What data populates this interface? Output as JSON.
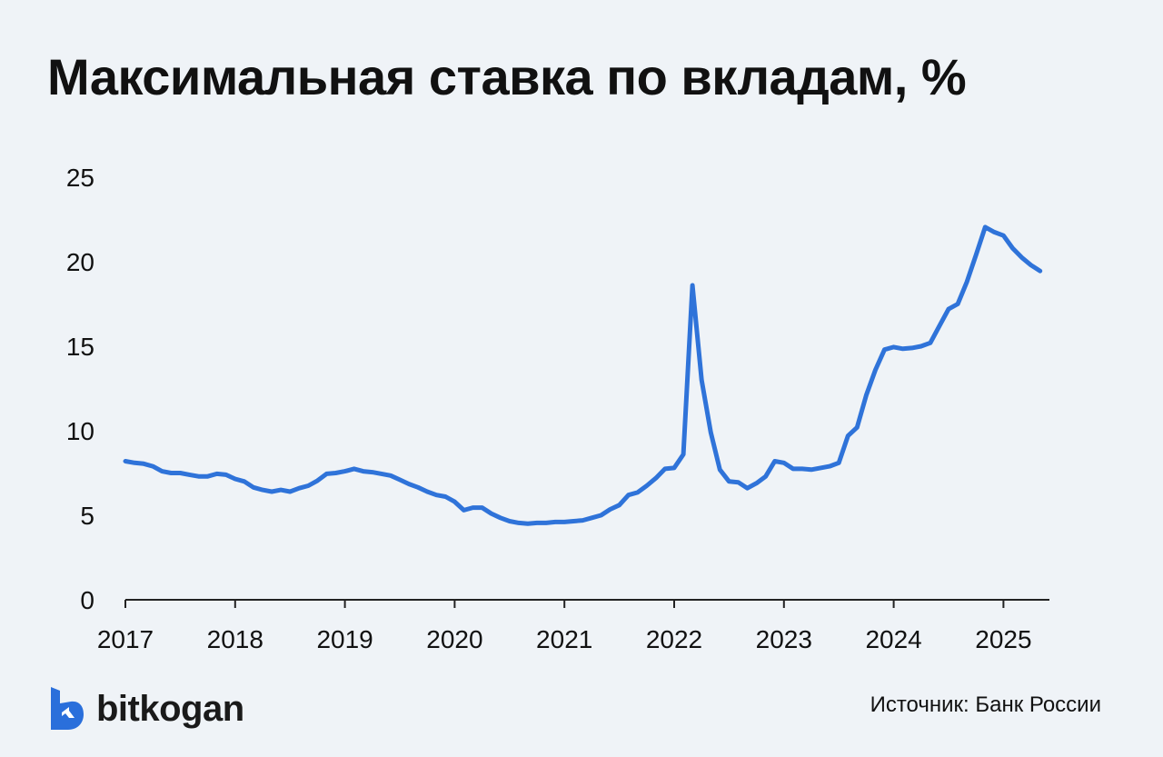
{
  "title": "Максимальная ставка по вкладам, %",
  "source": "Источник: Банк России",
  "brand": {
    "name": "bitkogan",
    "accent": "#2a6fdb"
  },
  "colors": {
    "line": "#2f73d9",
    "background": "#eff3f7",
    "text": "#111111"
  },
  "chart_data": {
    "type": "line",
    "title": "Максимальная ставка по вкладам, %",
    "xlabel": "",
    "ylabel": "",
    "ylim": [
      0,
      25
    ],
    "xlim": [
      "2017-01",
      "2025-06"
    ],
    "y_ticks": [
      0,
      5,
      10,
      15,
      20,
      25
    ],
    "x_ticks": [
      2017,
      2018,
      2019,
      2020,
      2021,
      2022,
      2023,
      2024,
      2025
    ],
    "grid": false,
    "legend": "none",
    "series": [
      {
        "x": [
          "2017-01",
          "2017-02",
          "2017-03",
          "2017-04",
          "2017-05",
          "2017-06",
          "2017-07",
          "2017-08",
          "2017-09",
          "2017-10",
          "2017-11",
          "2017-12",
          "2018-01",
          "2018-02",
          "2018-03",
          "2018-04",
          "2018-05",
          "2018-06",
          "2018-07",
          "2018-08",
          "2018-09",
          "2018-10",
          "2018-11",
          "2018-12",
          "2019-01",
          "2019-02",
          "2019-03",
          "2019-04",
          "2019-05",
          "2019-06",
          "2019-07",
          "2019-08",
          "2019-09",
          "2019-10",
          "2019-11",
          "2019-12",
          "2020-01",
          "2020-02",
          "2020-03",
          "2020-04",
          "2020-05",
          "2020-06",
          "2020-07",
          "2020-08",
          "2020-09",
          "2020-10",
          "2020-11",
          "2020-12",
          "2021-01",
          "2021-02",
          "2021-03",
          "2021-04",
          "2021-05",
          "2021-06",
          "2021-07",
          "2021-08",
          "2021-09",
          "2021-10",
          "2021-11",
          "2021-12",
          "2022-01",
          "2022-02",
          "2022-03",
          "2022-04",
          "2022-05",
          "2022-06",
          "2022-07",
          "2022-08",
          "2022-09",
          "2022-10",
          "2022-11",
          "2022-12",
          "2023-01",
          "2023-02",
          "2023-03",
          "2023-04",
          "2023-05",
          "2023-06",
          "2023-07",
          "2023-08",
          "2023-09",
          "2023-10",
          "2023-11",
          "2023-12",
          "2024-01",
          "2024-02",
          "2024-03",
          "2024-04",
          "2024-05",
          "2024-06",
          "2024-07",
          "2024-08",
          "2024-09",
          "2024-10",
          "2024-11",
          "2024-12",
          "2025-01",
          "2025-02",
          "2025-03",
          "2025-04",
          "2025-05"
        ],
        "values": [
          8.2,
          8.1,
          8.05,
          7.9,
          7.6,
          7.5,
          7.5,
          7.4,
          7.3,
          7.3,
          7.45,
          7.4,
          7.15,
          7.0,
          6.65,
          6.5,
          6.4,
          6.5,
          6.4,
          6.6,
          6.75,
          7.05,
          7.45,
          7.5,
          7.6,
          7.75,
          7.6,
          7.55,
          7.45,
          7.35,
          7.1,
          6.85,
          6.65,
          6.4,
          6.2,
          6.1,
          5.8,
          5.3,
          5.45,
          5.45,
          5.1,
          4.85,
          4.65,
          4.55,
          4.5,
          4.55,
          4.55,
          4.6,
          4.6,
          4.65,
          4.7,
          4.85,
          5.0,
          5.35,
          5.6,
          6.2,
          6.35,
          6.75,
          7.2,
          7.75,
          7.8,
          8.6,
          18.6,
          13.0,
          9.9,
          7.7,
          7.0,
          6.95,
          6.6,
          6.9,
          7.3,
          8.2,
          8.1,
          7.75,
          7.75,
          7.7,
          7.8,
          7.9,
          8.1,
          9.7,
          10.2,
          12.1,
          13.6,
          14.8,
          14.95,
          14.85,
          14.9,
          15.0,
          15.2,
          16.2,
          17.2,
          17.5,
          18.8,
          20.4,
          22.05,
          21.75,
          21.55,
          20.8,
          20.25,
          19.8,
          19.45
        ]
      }
    ]
  }
}
